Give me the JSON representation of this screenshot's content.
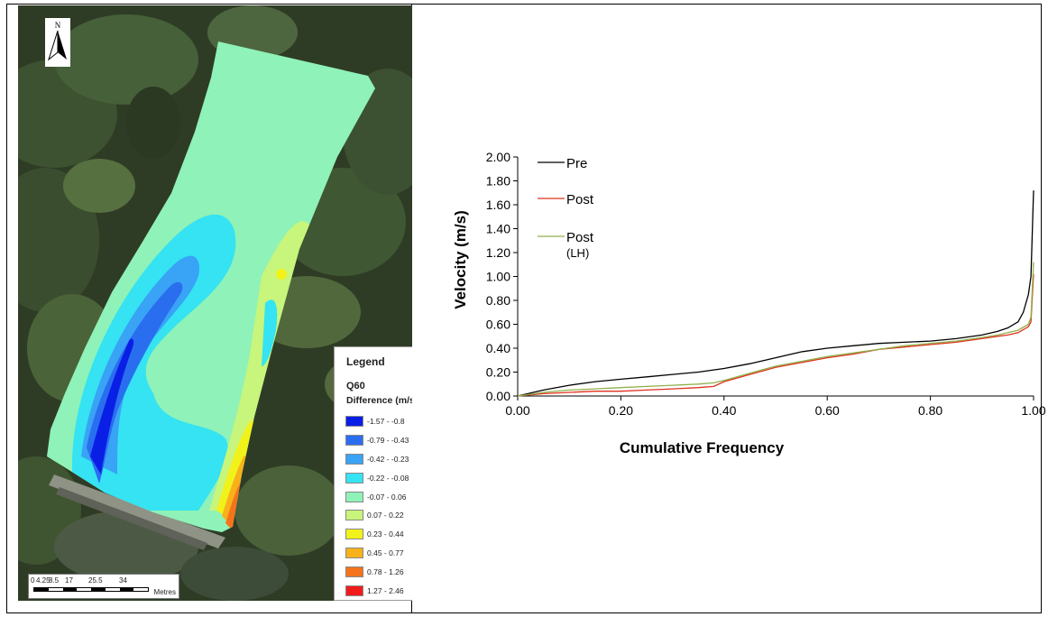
{
  "map": {
    "north_label": "N",
    "legend": {
      "title": "Legend",
      "subtitle": "Q60",
      "field": "Difference (m/s)",
      "classes": [
        {
          "label": "-1.57 - -0.8",
          "color": "#0a1fe6"
        },
        {
          "label": "-0.79 - -0.43",
          "color": "#2a6ef0"
        },
        {
          "label": "-0.42 - -0.23",
          "color": "#39a3f5"
        },
        {
          "label": "-0.22 - -0.08",
          "color": "#35e3f2"
        },
        {
          "label": "-0.07 - 0.06",
          "color": "#8ff2b8"
        },
        {
          "label": "0.07 - 0.22",
          "color": "#c8f57b"
        },
        {
          "label": "0.23 - 0.44",
          "color": "#f2f21b"
        },
        {
          "label": "0.45 - 0.77",
          "color": "#f7b21b"
        },
        {
          "label": "0.78 - 1.26",
          "color": "#f5741b"
        },
        {
          "label": "1.27 - 2.46",
          "color": "#f21b1b"
        }
      ]
    },
    "scale": {
      "ticks": [
        "0",
        "4.25",
        "8.5",
        "17",
        "25.5",
        "34"
      ],
      "units": "Metres"
    }
  },
  "chart_data": {
    "type": "line",
    "title": "",
    "xlabel": "Cumulative Frequency",
    "ylabel": "Velocity (m/s)",
    "xlim": [
      0,
      1
    ],
    "ylim": [
      0,
      2
    ],
    "xticks": [
      "0.00",
      "0.20",
      "0.40",
      "0.60",
      "0.80",
      "1.00"
    ],
    "yticks": [
      "0.00",
      "0.20",
      "0.40",
      "0.60",
      "0.80",
      "1.00",
      "1.20",
      "1.40",
      "1.60",
      "1.80",
      "2.00"
    ],
    "grid": false,
    "legend_position": "top-left",
    "series": [
      {
        "name": "Pre",
        "color": "#000000",
        "x": [
          0,
          0.05,
          0.1,
          0.15,
          0.2,
          0.25,
          0.3,
          0.35,
          0.4,
          0.45,
          0.5,
          0.55,
          0.6,
          0.65,
          0.7,
          0.75,
          0.8,
          0.85,
          0.9,
          0.93,
          0.95,
          0.97,
          0.98,
          0.99,
          0.995,
          1.0
        ],
        "y": [
          0,
          0.05,
          0.09,
          0.12,
          0.14,
          0.16,
          0.18,
          0.2,
          0.23,
          0.27,
          0.32,
          0.37,
          0.4,
          0.42,
          0.44,
          0.45,
          0.46,
          0.48,
          0.51,
          0.54,
          0.57,
          0.62,
          0.7,
          0.85,
          1.0,
          1.72
        ]
      },
      {
        "name": "Post",
        "color": "#e0301e",
        "x": [
          0,
          0.05,
          0.1,
          0.15,
          0.2,
          0.25,
          0.3,
          0.35,
          0.38,
          0.4,
          0.45,
          0.5,
          0.55,
          0.6,
          0.65,
          0.7,
          0.75,
          0.8,
          0.85,
          0.9,
          0.93,
          0.95,
          0.97,
          0.99,
          0.995,
          1.0
        ],
        "y": [
          0,
          0.02,
          0.03,
          0.04,
          0.04,
          0.05,
          0.06,
          0.07,
          0.08,
          0.12,
          0.18,
          0.24,
          0.28,
          0.32,
          0.35,
          0.39,
          0.41,
          0.43,
          0.45,
          0.48,
          0.5,
          0.51,
          0.53,
          0.58,
          0.62,
          1.02
        ]
      },
      {
        "name": "Post (LH)",
        "color": "#8fb04a",
        "x": [
          0,
          0.05,
          0.1,
          0.15,
          0.2,
          0.25,
          0.3,
          0.35,
          0.38,
          0.4,
          0.45,
          0.5,
          0.55,
          0.6,
          0.65,
          0.7,
          0.75,
          0.8,
          0.85,
          0.9,
          0.93,
          0.95,
          0.97,
          0.99,
          0.995,
          1.0
        ],
        "y": [
          0,
          0.03,
          0.05,
          0.06,
          0.07,
          0.08,
          0.09,
          0.1,
          0.11,
          0.13,
          0.19,
          0.25,
          0.29,
          0.33,
          0.36,
          0.39,
          0.42,
          0.44,
          0.46,
          0.49,
          0.51,
          0.53,
          0.55,
          0.6,
          0.66,
          1.12
        ]
      }
    ],
    "legend_labels": [
      {
        "series": "Pre",
        "lines": [
          "Pre"
        ]
      },
      {
        "series": "Post",
        "lines": [
          "Post"
        ]
      },
      {
        "series": "Post (LH)",
        "lines": [
          "Post",
          "(LH)"
        ]
      }
    ]
  }
}
